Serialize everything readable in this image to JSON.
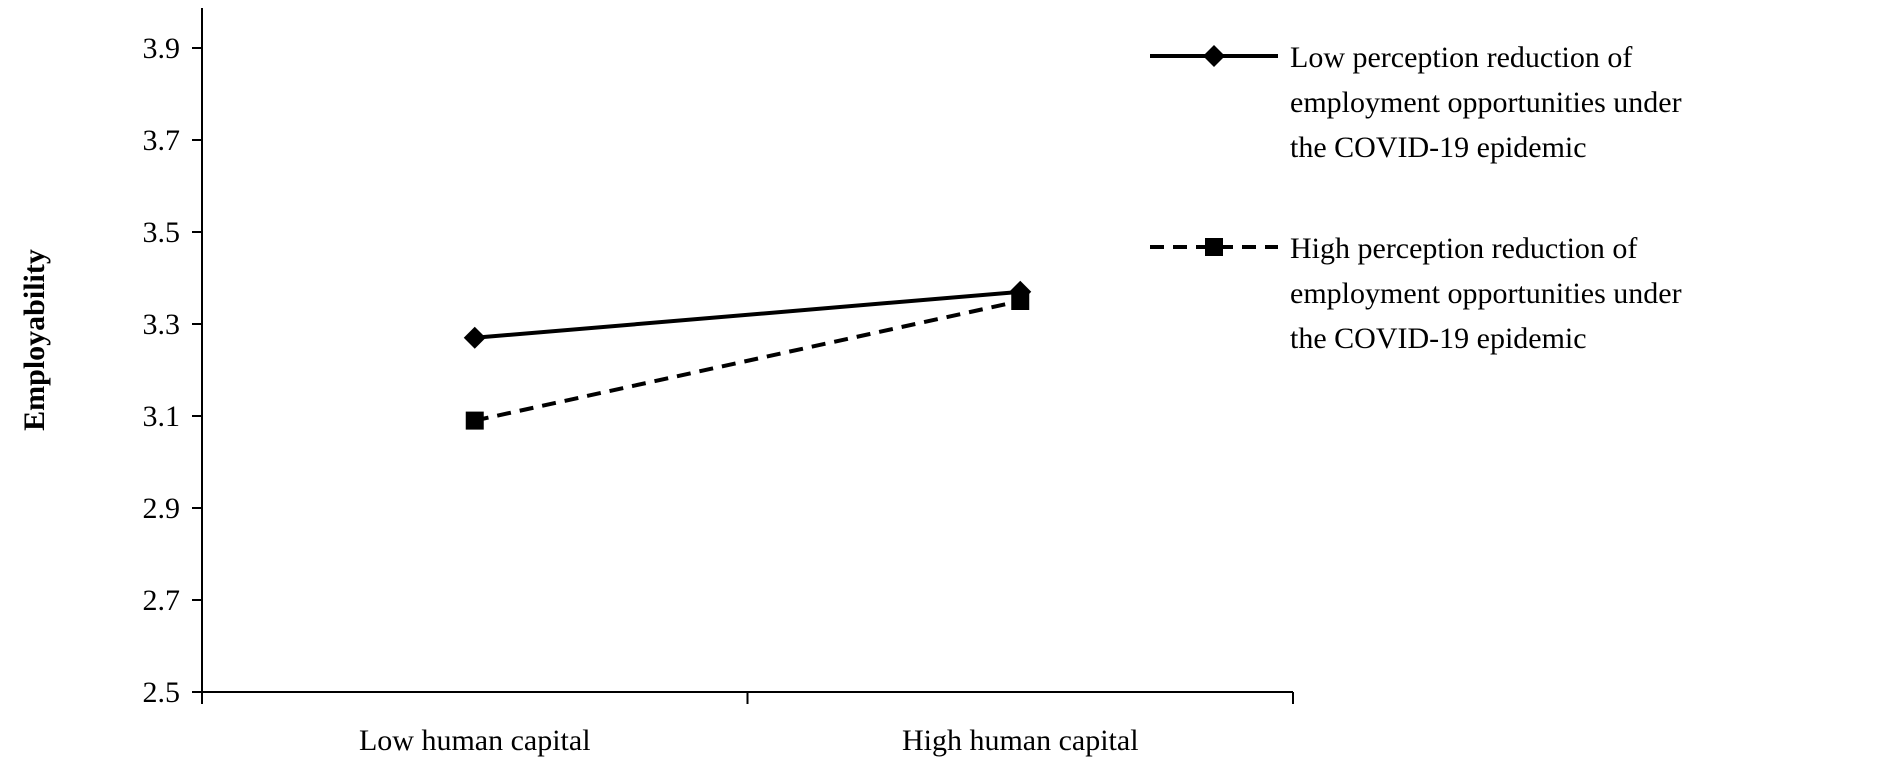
{
  "chart_data": {
    "type": "line",
    "title": "",
    "xlabel": "",
    "ylabel": "Employability",
    "ylim": [
      2.5,
      4.0
    ],
    "yticks": [
      "2.5",
      "2.7",
      "2.9",
      "3.1",
      "3.3",
      "3.5",
      "3.7",
      "3.9"
    ],
    "categories": [
      "Low human capital",
      "High human capital"
    ],
    "grid": false,
    "legend_position": "top-right",
    "series": [
      {
        "name": "Low perception reduction of employment opportunities under the COVID-19 epidemic",
        "name_lines": [
          "Low perception reduction of",
          "employment opportunities under",
          "the COVID-19 epidemic"
        ],
        "values": [
          3.27,
          3.37
        ],
        "marker": "diamond",
        "line_style": "solid",
        "color": "#000000"
      },
      {
        "name": "High perception reduction of employment opportunities under the COVID-19 epidemic",
        "name_lines": [
          "High perception reduction of",
          "employment opportunities under",
          "the COVID-19 epidemic"
        ],
        "values": [
          3.09,
          3.35
        ],
        "marker": "square",
        "line_style": "dashed",
        "color": "#000000"
      }
    ]
  }
}
